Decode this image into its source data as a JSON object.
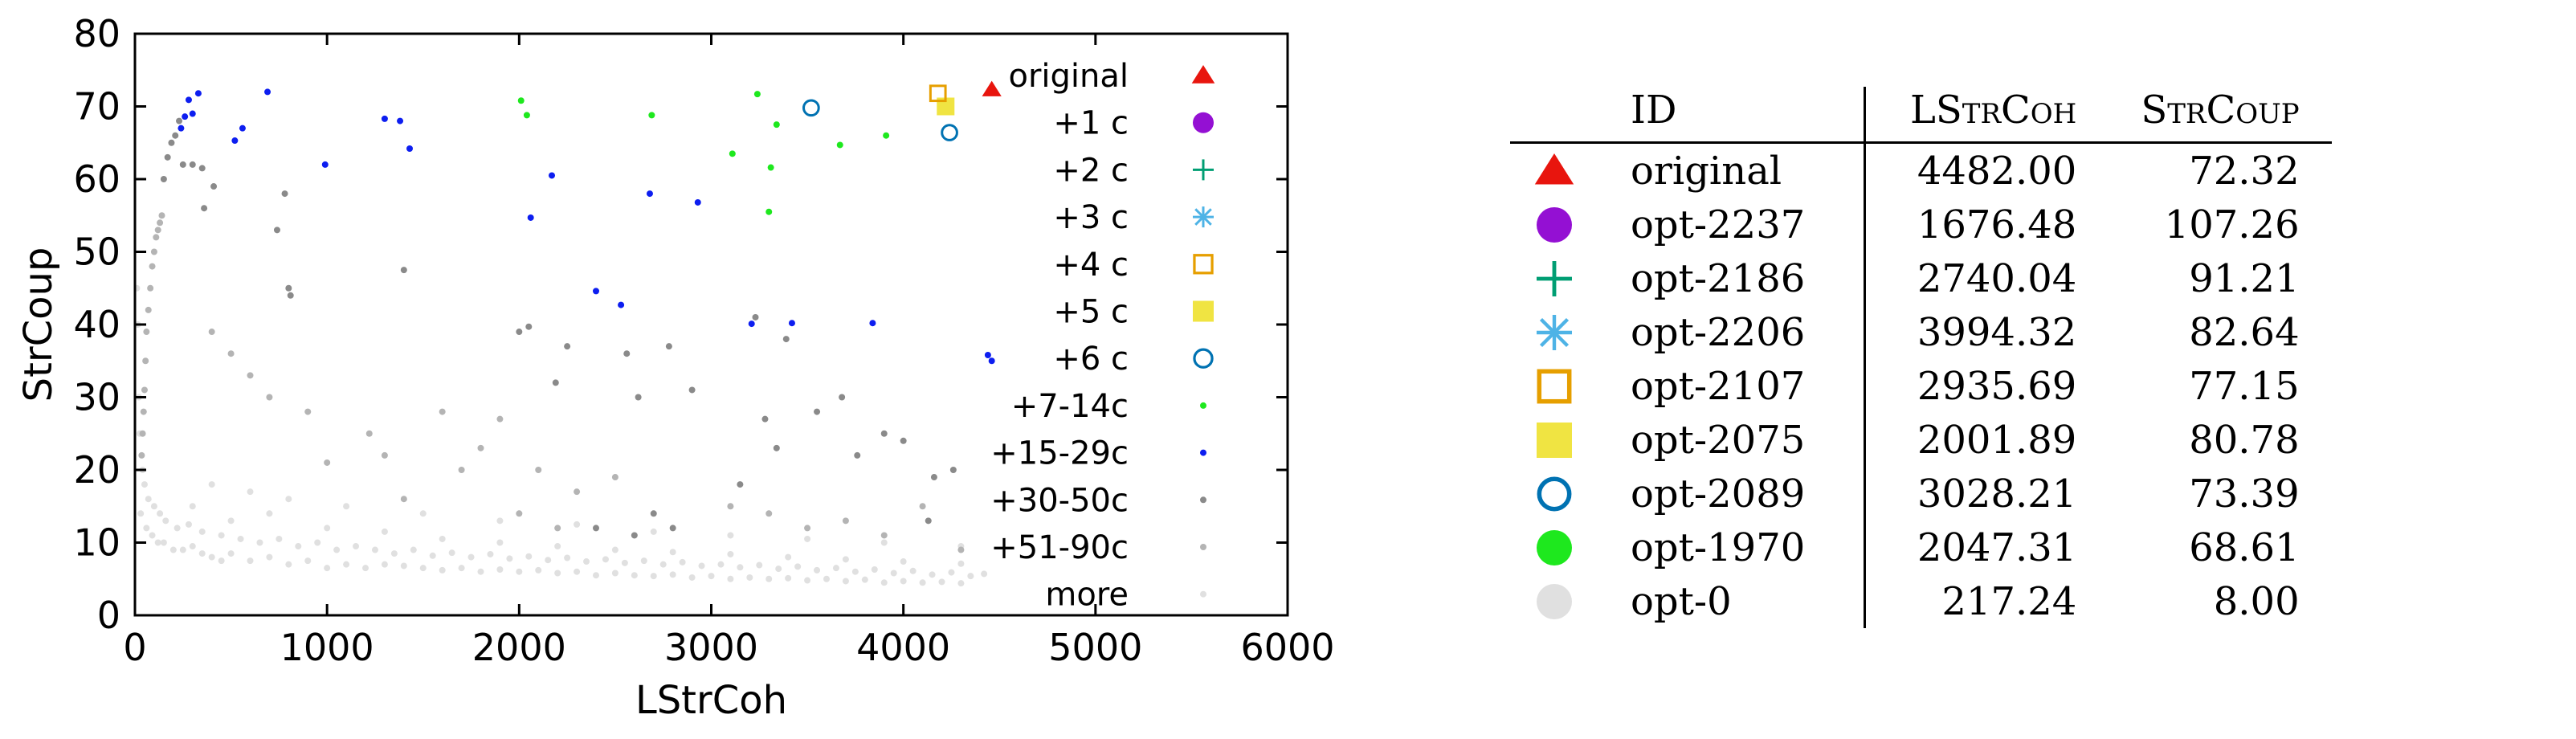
{
  "chart_data": {
    "type": "scatter",
    "xlabel": "LStrCoh",
    "ylabel": "StrCoup",
    "xlim": [
      0,
      6000
    ],
    "ylim": [
      0,
      80
    ],
    "x_ticks": [
      "0",
      "1000",
      "2000",
      "3000",
      "4000",
      "5000",
      "6000"
    ],
    "y_ticks": [
      "0",
      "10",
      "20",
      "30",
      "40",
      "50",
      "60",
      "70",
      "80"
    ],
    "grid": false,
    "legend_position": "top-right",
    "series": [
      {
        "name": "original",
        "marker": "triangle",
        "color": "#e8150e",
        "points": [
          [
            4460,
            72.3
          ]
        ]
      },
      {
        "name": "+1 c",
        "marker": "filled-circle",
        "color": "#9410d3",
        "points": []
      },
      {
        "name": "+2 c",
        "marker": "plus",
        "color": "#009e73",
        "points": []
      },
      {
        "name": "+3 c",
        "marker": "asterisk",
        "color": "#4eb3e6",
        "points": []
      },
      {
        "name": "+4 c",
        "marker": "open-square",
        "color": "#e69f00",
        "points": [
          [
            4180,
            71.8
          ]
        ]
      },
      {
        "name": "+5 c",
        "marker": "filled-square",
        "color": "#f0e442",
        "points": [
          [
            4220,
            70.0
          ]
        ]
      },
      {
        "name": "+6 c",
        "marker": "open-circle",
        "color": "#0072b2",
        "points": [
          [
            3520,
            69.8
          ],
          [
            4240,
            66.4
          ]
        ]
      },
      {
        "name": "+7-14c",
        "marker": "dot",
        "color": "#1ee81e",
        "points": [
          [
            2010,
            70.8
          ],
          [
            2040,
            68.8
          ],
          [
            2690,
            68.8
          ],
          [
            3240,
            71.7
          ],
          [
            3340,
            67.5
          ],
          [
            3110,
            63.5
          ],
          [
            3310,
            61.6
          ],
          [
            3670,
            64.7
          ],
          [
            3910,
            66.0
          ],
          [
            3300,
            55.5
          ]
        ]
      },
      {
        "name": "+15-29c",
        "marker": "dot",
        "color": "#0d1ef0",
        "points": [
          [
            240,
            67.0
          ],
          [
            260,
            68.6
          ],
          [
            280,
            70.9
          ],
          [
            300,
            69.0
          ],
          [
            330,
            71.8
          ],
          [
            690,
            72.0
          ],
          [
            520,
            65.3
          ],
          [
            560,
            67.0
          ],
          [
            990,
            62.0
          ],
          [
            1300,
            68.3
          ],
          [
            1380,
            68.0
          ],
          [
            1430,
            64.2
          ],
          [
            2170,
            60.5
          ],
          [
            2060,
            54.7
          ],
          [
            2680,
            58.0
          ],
          [
            2930,
            56.8
          ],
          [
            2400,
            44.6
          ],
          [
            2530,
            42.7
          ],
          [
            3210,
            40.1
          ],
          [
            3420,
            40.2
          ],
          [
            3840,
            40.2
          ],
          [
            4440,
            35.8
          ],
          [
            4460,
            35.0
          ]
        ]
      },
      {
        "name": "+30-50c",
        "marker": "dot",
        "color": "#8a8a8a",
        "points": [
          [
            150,
            60
          ],
          [
            170,
            63
          ],
          [
            190,
            65
          ],
          [
            210,
            66
          ],
          [
            230,
            68
          ],
          [
            250,
            62
          ],
          [
            300,
            62
          ],
          [
            350,
            61.5
          ],
          [
            410,
            59
          ],
          [
            360,
            56
          ],
          [
            780,
            58
          ],
          [
            740,
            53
          ],
          [
            1400,
            47.5
          ],
          [
            800,
            45
          ],
          [
            810,
            44
          ],
          [
            2000,
            39
          ],
          [
            2050,
            39.7
          ],
          [
            2250,
            37
          ],
          [
            2190,
            32
          ],
          [
            2560,
            36
          ],
          [
            2620,
            30
          ],
          [
            2780,
            37
          ],
          [
            2900,
            31
          ],
          [
            3230,
            41
          ],
          [
            3390,
            38
          ],
          [
            3280,
            27
          ],
          [
            3340,
            23
          ],
          [
            3550,
            28
          ],
          [
            3680,
            30
          ],
          [
            3760,
            22
          ],
          [
            3900,
            25
          ],
          [
            4000,
            24
          ],
          [
            4160,
            19
          ],
          [
            4260,
            20
          ],
          [
            4130,
            13
          ],
          [
            3150,
            18
          ],
          [
            2700,
            14
          ],
          [
            2800,
            12
          ],
          [
            2600,
            11
          ],
          [
            2400,
            12
          ]
        ]
      },
      {
        "name": "+51-90c",
        "marker": "dot",
        "color": "#b4b4b4",
        "points": [
          [
            100,
            50
          ],
          [
            110,
            52
          ],
          [
            120,
            53
          ],
          [
            130,
            54
          ],
          [
            140,
            55
          ],
          [
            90,
            48
          ],
          [
            80,
            45
          ],
          [
            70,
            42
          ],
          [
            60,
            39
          ],
          [
            55,
            35
          ],
          [
            50,
            31
          ],
          [
            45,
            28
          ],
          [
            40,
            25
          ],
          [
            35,
            22
          ],
          [
            1220,
            25
          ],
          [
            1300,
            22
          ],
          [
            1700,
            20
          ],
          [
            1900,
            27
          ],
          [
            2100,
            20
          ],
          [
            2300,
            17
          ],
          [
            2500,
            19
          ],
          [
            900,
            28
          ],
          [
            700,
            30
          ],
          [
            600,
            33
          ],
          [
            500,
            36
          ],
          [
            400,
            39
          ],
          [
            1600,
            28
          ],
          [
            1800,
            23
          ],
          [
            3100,
            15
          ],
          [
            3300,
            14
          ],
          [
            3500,
            12
          ],
          [
            3700,
            13
          ],
          [
            3900,
            11
          ],
          [
            4100,
            15
          ],
          [
            4300,
            9
          ],
          [
            1000,
            21
          ],
          [
            1400,
            16
          ],
          [
            2000,
            14
          ],
          [
            2200,
            12
          ]
        ]
      },
      {
        "name": "more",
        "marker": "dot",
        "color": "#e0e0e0",
        "points": [
          [
            30,
            14
          ],
          [
            60,
            12
          ],
          [
            90,
            11
          ],
          [
            120,
            10
          ],
          [
            150,
            10
          ],
          [
            200,
            9
          ],
          [
            250,
            9
          ],
          [
            300,
            9.5
          ],
          [
            350,
            8.5
          ],
          [
            400,
            8
          ],
          [
            450,
            7.5
          ],
          [
            500,
            8.5
          ],
          [
            600,
            7.5
          ],
          [
            700,
            8
          ],
          [
            800,
            7
          ],
          [
            900,
            7.5
          ],
          [
            1000,
            6.5
          ],
          [
            1100,
            7
          ],
          [
            1200,
            6.5
          ],
          [
            1300,
            7
          ],
          [
            1400,
            6.8
          ],
          [
            1500,
            6.5
          ],
          [
            1600,
            6.2
          ],
          [
            1700,
            6.5
          ],
          [
            1800,
            6
          ],
          [
            1900,
            6.3
          ],
          [
            2000,
            6
          ],
          [
            2100,
            6.2
          ],
          [
            2200,
            5.8
          ],
          [
            2300,
            6
          ],
          [
            2400,
            5.5
          ],
          [
            2500,
            5.8
          ],
          [
            2600,
            5.5
          ],
          [
            2700,
            5.4
          ],
          [
            2800,
            5.6
          ],
          [
            2900,
            5.2
          ],
          [
            3000,
            5.4
          ],
          [
            3100,
            5
          ],
          [
            3200,
            5.2
          ],
          [
            3300,
            5
          ],
          [
            3400,
            5.1
          ],
          [
            3500,
            4.8
          ],
          [
            3600,
            5
          ],
          [
            3700,
            4.7
          ],
          [
            3800,
            4.9
          ],
          [
            3900,
            4.5
          ],
          [
            4000,
            4.7
          ],
          [
            4100,
            4.5
          ],
          [
            4200,
            4.6
          ],
          [
            4300,
            4.4
          ],
          [
            40,
            20
          ],
          [
            50,
            18
          ],
          [
            70,
            16
          ],
          [
            100,
            15
          ],
          [
            130,
            14
          ],
          [
            160,
            13
          ],
          [
            220,
            12
          ],
          [
            280,
            12.5
          ],
          [
            350,
            11.5
          ],
          [
            450,
            11
          ],
          [
            550,
            10.5
          ],
          [
            650,
            10
          ],
          [
            750,
            10.5
          ],
          [
            850,
            9.5
          ],
          [
            950,
            10
          ],
          [
            1050,
            9
          ],
          [
            1150,
            9.5
          ],
          [
            1250,
            9
          ],
          [
            1350,
            8.5
          ],
          [
            1450,
            9
          ],
          [
            1550,
            8.2
          ],
          [
            1650,
            8.6
          ],
          [
            1750,
            8
          ],
          [
            1850,
            8.4
          ],
          [
            1950,
            7.8
          ],
          [
            2050,
            8.1
          ],
          [
            2150,
            7.6
          ],
          [
            2250,
            7.9
          ],
          [
            2350,
            7.4
          ],
          [
            2450,
            7.7
          ],
          [
            2550,
            7.2
          ],
          [
            2650,
            7.5
          ],
          [
            2750,
            7
          ],
          [
            2850,
            7.3
          ],
          [
            2950,
            6.8
          ],
          [
            3050,
            7
          ],
          [
            3150,
            6.6
          ],
          [
            3250,
            6.9
          ],
          [
            3350,
            6.4
          ],
          [
            3450,
            6.7
          ],
          [
            3550,
            6.2
          ],
          [
            3650,
            6.5
          ],
          [
            3750,
            6
          ],
          [
            3850,
            6.3
          ],
          [
            3950,
            5.8
          ],
          [
            4050,
            6.1
          ],
          [
            4150,
            5.6
          ],
          [
            4250,
            5.9
          ],
          [
            4350,
            5.4
          ],
          [
            4420,
            5.7
          ],
          [
            20,
            30
          ],
          [
            25,
            25
          ],
          [
            15,
            40
          ],
          [
            10,
            45
          ],
          [
            300,
            15
          ],
          [
            500,
            13
          ],
          [
            700,
            14
          ],
          [
            1000,
            12
          ],
          [
            1300,
            11.5
          ],
          [
            1600,
            10.5
          ],
          [
            1900,
            10
          ],
          [
            2200,
            9.5
          ],
          [
            2500,
            9
          ],
          [
            2800,
            8.7
          ],
          [
            3100,
            8.4
          ],
          [
            3400,
            8
          ],
          [
            3700,
            7.7
          ],
          [
            4000,
            7.4
          ],
          [
            4300,
            7.1
          ],
          [
            400,
            18
          ],
          [
            600,
            17
          ],
          [
            800,
            16
          ],
          [
            1100,
            15
          ],
          [
            1500,
            14
          ],
          [
            1900,
            13
          ],
          [
            2300,
            12.5
          ],
          [
            2700,
            11.5
          ],
          [
            3100,
            11
          ],
          [
            3500,
            10.5
          ],
          [
            3900,
            10
          ],
          [
            4300,
            9.5
          ]
        ]
      }
    ]
  },
  "table": {
    "headers": {
      "id": "ID",
      "lstrcoh": {
        "first": "LS",
        "sc1": "tr",
        "mid": "C",
        "sc2": "oh"
      },
      "strcoup": {
        "first": "S",
        "sc1": "tr",
        "mid": "C",
        "sc2": "oup"
      }
    },
    "rows": [
      {
        "marker": "triangle",
        "color": "#e8150e",
        "id": "original",
        "lstrcoh": "4482.00",
        "strcoup": "72.32"
      },
      {
        "marker": "filled-circle",
        "color": "#9410d3",
        "id": "opt-2237",
        "lstrcoh": "1676.48",
        "strcoup": "107.26"
      },
      {
        "marker": "plus",
        "color": "#009e73",
        "id": "opt-2186",
        "lstrcoh": "2740.04",
        "strcoup": "91.21"
      },
      {
        "marker": "asterisk",
        "color": "#4eb3e6",
        "id": "opt-2206",
        "lstrcoh": "3994.32",
        "strcoup": "82.64"
      },
      {
        "marker": "open-square",
        "color": "#e69f00",
        "id": "opt-2107",
        "lstrcoh": "2935.69",
        "strcoup": "77.15"
      },
      {
        "marker": "filled-square",
        "color": "#f0e442",
        "id": "opt-2075",
        "lstrcoh": "2001.89",
        "strcoup": "80.78"
      },
      {
        "marker": "open-circle",
        "color": "#0072b2",
        "id": "opt-2089",
        "lstrcoh": "3028.21",
        "strcoup": "73.39"
      },
      {
        "marker": "filled-circle",
        "color": "#1ee81e",
        "id": "opt-1970",
        "lstrcoh": "2047.31",
        "strcoup": "68.61"
      },
      {
        "marker": "filled-circle",
        "color": "#e0e0e0",
        "id": "opt-0",
        "lstrcoh": "217.24",
        "strcoup": "8.00"
      }
    ]
  }
}
